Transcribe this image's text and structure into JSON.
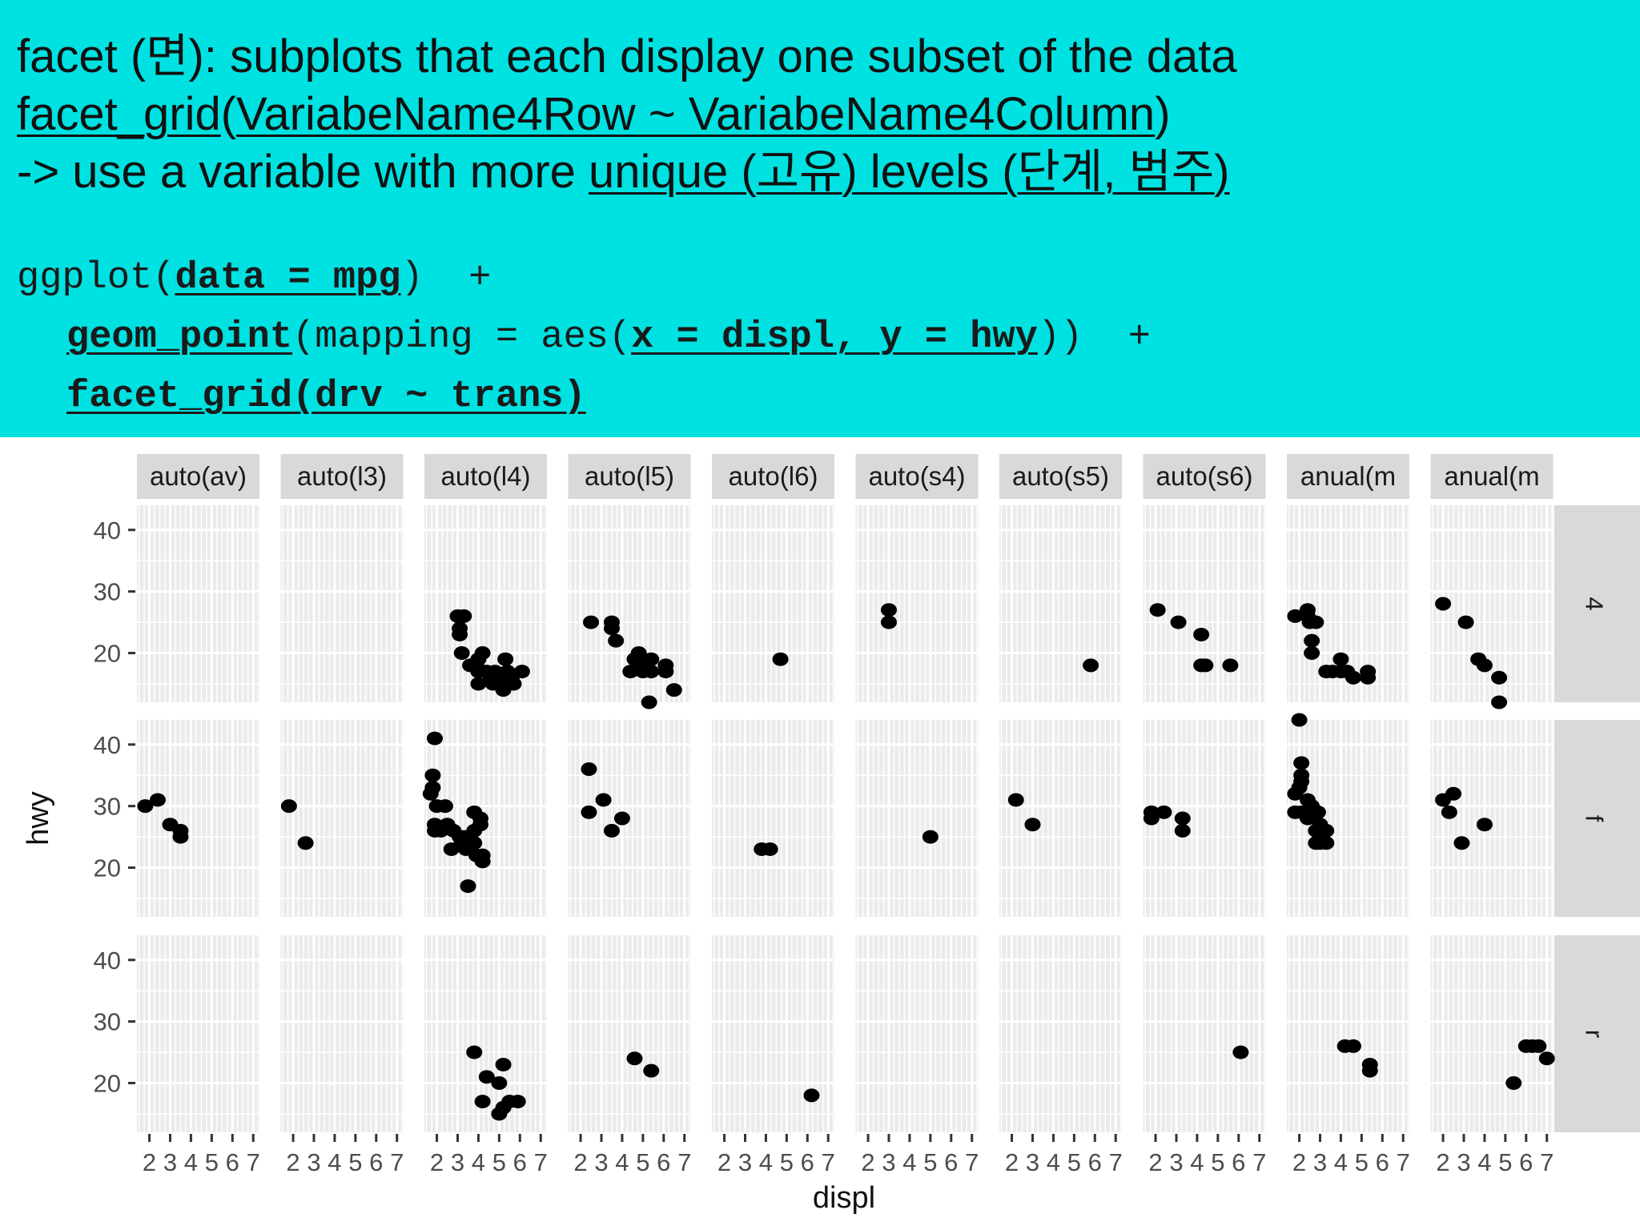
{
  "header": {
    "line1": {
      "prefix": "facet (",
      "korean": "면",
      "suffix": "): subplots that each display one subset of the data"
    },
    "line2": {
      "fn": "facet_grid",
      "open": "(",
      "arg": "VariabeName4Row ~ VariabeName4Column",
      "close": ")"
    },
    "line3": {
      "prefix": "-> use a variable with more ",
      "underlined": "unique (고유) levels (단계, 범주)"
    },
    "code": {
      "l1_fn": "ggplot(",
      "l1_arg": "data = mpg",
      "l1_end": ")  +",
      "l2_fn": "geom_point",
      "l2_mid": "(mapping = aes(",
      "l2_arg": "x = displ, y = hwy",
      "l2_end": "))  +",
      "l3": "facet_grid(drv ~ trans)"
    }
  },
  "chart_data": {
    "type": "scatter",
    "xlabel": "displ",
    "ylabel": "hwy",
    "xlim": [
      1.4,
      7.3
    ],
    "ylim": [
      12,
      44
    ],
    "x_ticks": [
      2,
      3,
      4,
      5,
      6,
      7
    ],
    "x_tick_labels": [
      "2",
      "3",
      "4",
      "5",
      "6",
      "7"
    ],
    "y_ticks": [
      20,
      30,
      40
    ],
    "y_tick_labels": [
      "20",
      "30",
      "40"
    ],
    "columns": [
      "auto(av)",
      "auto(l3)",
      "auto(l4)",
      "auto(l5)",
      "auto(l6)",
      "auto(s4)",
      "auto(s5)",
      "auto(s6)",
      "anual(m",
      "anual(m"
    ],
    "rows": [
      "4",
      "f",
      "r"
    ],
    "grid": true,
    "colors": {
      "panel_bg": "#ebebeb",
      "strip_bg": "#d9d9d9",
      "grid": "#ffffff",
      "point": "#000000",
      "text": "#4d4d4d"
    },
    "panels": {
      "4": {
        "auto(av)": [],
        "auto(l3)": [],
        "auto(l4)": [
          [
            3.0,
            26
          ],
          [
            3.3,
            26
          ],
          [
            3.1,
            24
          ],
          [
            3.1,
            23
          ],
          [
            3.2,
            20
          ],
          [
            3.6,
            18
          ],
          [
            3.9,
            18
          ],
          [
            4.0,
            19
          ],
          [
            4.2,
            20
          ],
          [
            4.0,
            17
          ],
          [
            4.4,
            17
          ],
          [
            4.6,
            16
          ],
          [
            4.7,
            15
          ],
          [
            4.0,
            15
          ],
          [
            5.0,
            16
          ],
          [
            5.3,
            15
          ],
          [
            5.4,
            17
          ],
          [
            5.3,
            19
          ],
          [
            5.7,
            15
          ],
          [
            5.2,
            14
          ],
          [
            6.1,
            17
          ],
          [
            4.8,
            17
          ],
          [
            5.6,
            16
          ]
        ],
        "auto(l5)": [
          [
            2.5,
            25
          ],
          [
            3.5,
            25
          ],
          [
            3.5,
            24
          ],
          [
            3.7,
            22
          ],
          [
            4.6,
            19
          ],
          [
            4.8,
            20
          ],
          [
            4.4,
            17
          ],
          [
            5.0,
            18
          ],
          [
            5.0,
            17
          ],
          [
            5.4,
            19
          ],
          [
            5.4,
            17
          ],
          [
            6.1,
            18
          ],
          [
            6.1,
            17
          ],
          [
            5.3,
            12
          ],
          [
            6.5,
            14
          ]
        ],
        "auto(l6)": [
          [
            4.7,
            19
          ]
        ],
        "auto(s4)": [
          [
            3.0,
            27
          ],
          [
            3.0,
            25
          ]
        ],
        "auto(s5)": [
          [
            5.8,
            18
          ]
        ],
        "auto(s6)": [
          [
            2.1,
            27
          ],
          [
            3.1,
            25
          ],
          [
            4.2,
            23
          ],
          [
            4.2,
            18
          ],
          [
            4.4,
            18
          ],
          [
            5.6,
            18
          ]
        ],
        "anual(m": [
          [
            1.8,
            26
          ],
          [
            2.4,
            27
          ],
          [
            2.4,
            26
          ],
          [
            2.5,
            25
          ],
          [
            2.8,
            25
          ],
          [
            2.6,
            22
          ],
          [
            2.6,
            20
          ],
          [
            3.3,
            17
          ],
          [
            3.6,
            17
          ],
          [
            4.0,
            17
          ],
          [
            4.0,
            19
          ],
          [
            4.6,
            16
          ],
          [
            5.3,
            17
          ],
          [
            5.3,
            16
          ],
          [
            4.3,
            17
          ]
        ],
        "anual(m ": [
          [
            2.0,
            28
          ],
          [
            3.1,
            25
          ],
          [
            3.7,
            19
          ],
          [
            4.0,
            18
          ],
          [
            4.7,
            16
          ],
          [
            4.7,
            12
          ]
        ]
      },
      "f": {
        "auto(av)": [
          [
            1.8,
            30
          ],
          [
            2.4,
            31
          ],
          [
            3.0,
            27
          ],
          [
            3.5,
            26
          ],
          [
            3.5,
            25
          ]
        ],
        "auto(l3)": [
          [
            1.8,
            30
          ],
          [
            2.6,
            24
          ]
        ],
        "auto(l4)": [
          [
            1.9,
            41
          ],
          [
            1.8,
            35
          ],
          [
            1.8,
            33
          ],
          [
            1.7,
            32
          ],
          [
            2.0,
            30
          ],
          [
            2.4,
            30
          ],
          [
            1.9,
            27
          ],
          [
            1.9,
            26
          ],
          [
            2.2,
            26
          ],
          [
            2.5,
            27
          ],
          [
            2.8,
            26
          ],
          [
            3.2,
            24
          ],
          [
            3.4,
            23
          ],
          [
            2.7,
            23
          ],
          [
            3.1,
            25
          ],
          [
            3.6,
            25
          ],
          [
            3.8,
            26
          ],
          [
            3.8,
            29
          ],
          [
            4.1,
            28
          ],
          [
            4.1,
            27
          ],
          [
            3.9,
            22
          ],
          [
            4.2,
            22
          ],
          [
            4.2,
            21
          ],
          [
            3.5,
            17
          ],
          [
            3.8,
            24
          ],
          [
            3.3,
            25
          ]
        ],
        "auto(l5)": [
          [
            2.4,
            36
          ],
          [
            2.4,
            29
          ],
          [
            3.1,
            31
          ],
          [
            3.5,
            26
          ],
          [
            4.0,
            28
          ]
        ],
        "auto(l6)": [
          [
            3.8,
            23
          ],
          [
            4.2,
            23
          ]
        ],
        "auto(s4)": [
          [
            5.0,
            25
          ]
        ],
        "auto(s5)": [
          [
            2.2,
            31
          ],
          [
            3.0,
            27
          ]
        ],
        "auto(s6)": [
          [
            1.8,
            29
          ],
          [
            1.8,
            28
          ],
          [
            2.4,
            29
          ],
          [
            3.3,
            28
          ],
          [
            3.3,
            26
          ]
        ],
        "anual(m": [
          [
            2.0,
            44
          ],
          [
            2.1,
            37
          ],
          [
            2.1,
            35
          ],
          [
            2.1,
            34
          ],
          [
            2.0,
            33
          ],
          [
            1.8,
            32
          ],
          [
            1.8,
            29
          ],
          [
            2.1,
            29
          ],
          [
            2.4,
            28
          ],
          [
            2.4,
            31
          ],
          [
            2.6,
            30
          ],
          [
            2.9,
            29
          ],
          [
            3.0,
            27
          ],
          [
            2.8,
            26
          ],
          [
            2.8,
            24
          ],
          [
            3.1,
            25
          ],
          [
            3.3,
            26
          ],
          [
            3.0,
            24
          ],
          [
            3.3,
            24
          ]
        ],
        "anual(m ": [
          [
            2.0,
            31
          ],
          [
            2.3,
            29
          ],
          [
            2.5,
            32
          ],
          [
            2.9,
            24
          ],
          [
            4.0,
            27
          ]
        ]
      },
      "r": {
        "auto(av)": [],
        "auto(l3)": [],
        "auto(l4)": [
          [
            3.8,
            25
          ],
          [
            4.4,
            21
          ],
          [
            4.2,
            17
          ],
          [
            5.2,
            23
          ],
          [
            5.0,
            20
          ],
          [
            5.5,
            17
          ],
          [
            5.9,
            17
          ],
          [
            5.0,
            15
          ],
          [
            5.2,
            16
          ]
        ],
        "auto(l5)": [
          [
            4.6,
            24
          ],
          [
            5.4,
            22
          ]
        ],
        "auto(l6)": [
          [
            6.2,
            18
          ]
        ],
        "auto(s4)": [],
        "auto(s5)": [],
        "auto(s6)": [
          [
            6.1,
            25
          ]
        ],
        "anual(m": [
          [
            4.2,
            26
          ],
          [
            4.6,
            26
          ],
          [
            5.4,
            23
          ],
          [
            5.4,
            22
          ]
        ],
        "anual(m ": [
          [
            7.0,
            24
          ],
          [
            6.0,
            26
          ],
          [
            6.3,
            26
          ],
          [
            6.6,
            26
          ],
          [
            5.4,
            20
          ]
        ]
      }
    }
  }
}
